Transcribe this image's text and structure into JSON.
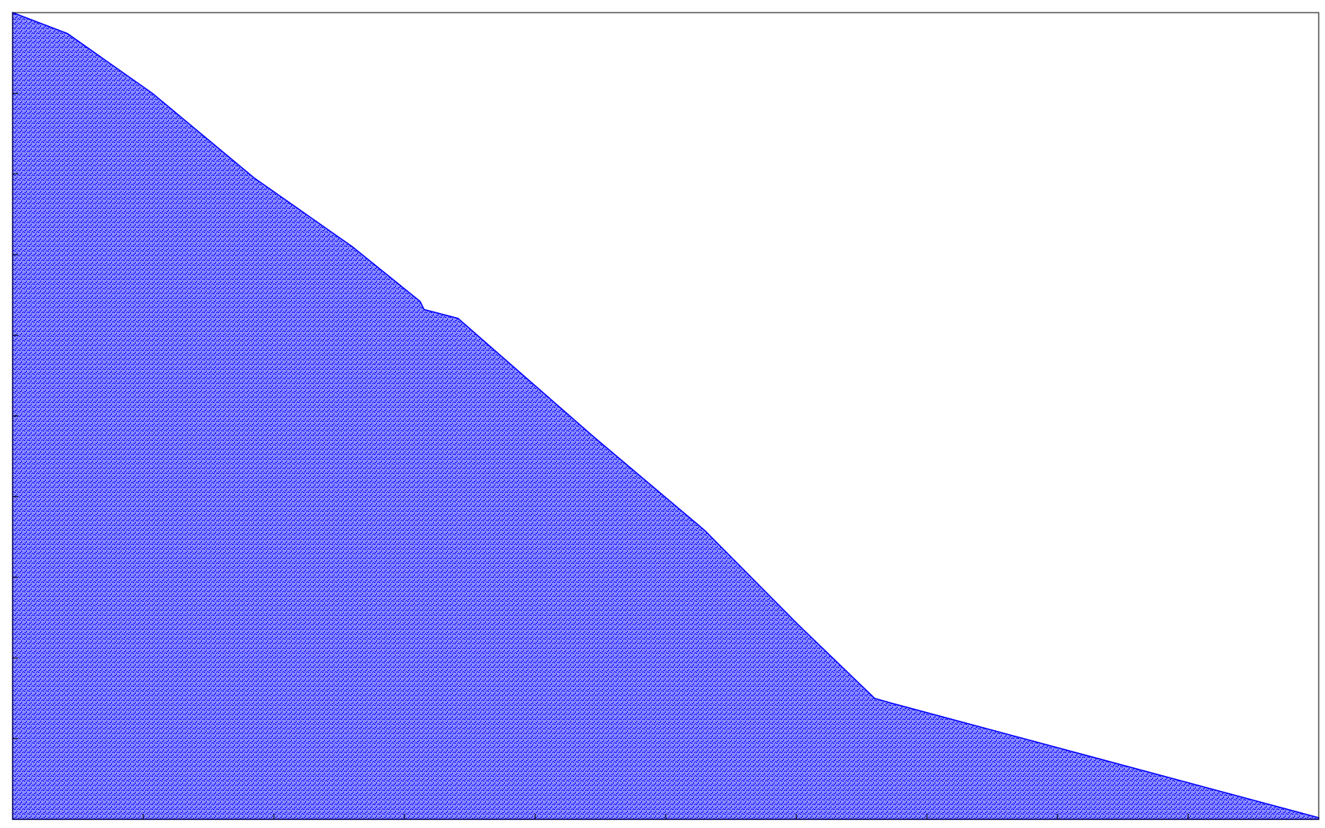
{
  "chart_data": {
    "type": "area",
    "color": "#0000ff",
    "x": [
      0,
      0.42,
      1.07,
      1.85,
      2.6,
      3.12,
      3.15,
      3.41,
      4.45,
      5.3,
      6.01,
      6.6,
      6.73,
      10
    ],
    "values": [
      10,
      9.74,
      9.0,
      7.95,
      7.1,
      6.42,
      6.32,
      6.21,
      4.74,
      3.58,
      2.42,
      1.5,
      1.44,
      0.02
    ],
    "xlim": [
      0,
      10
    ],
    "ylim": [
      0,
      10
    ],
    "xticks": [
      0,
      1,
      2,
      3,
      4,
      5,
      6,
      7,
      8,
      9,
      10
    ],
    "yticks": [
      0,
      1,
      2,
      3,
      4,
      5,
      6,
      7,
      8,
      9,
      10
    ],
    "grid": false
  }
}
